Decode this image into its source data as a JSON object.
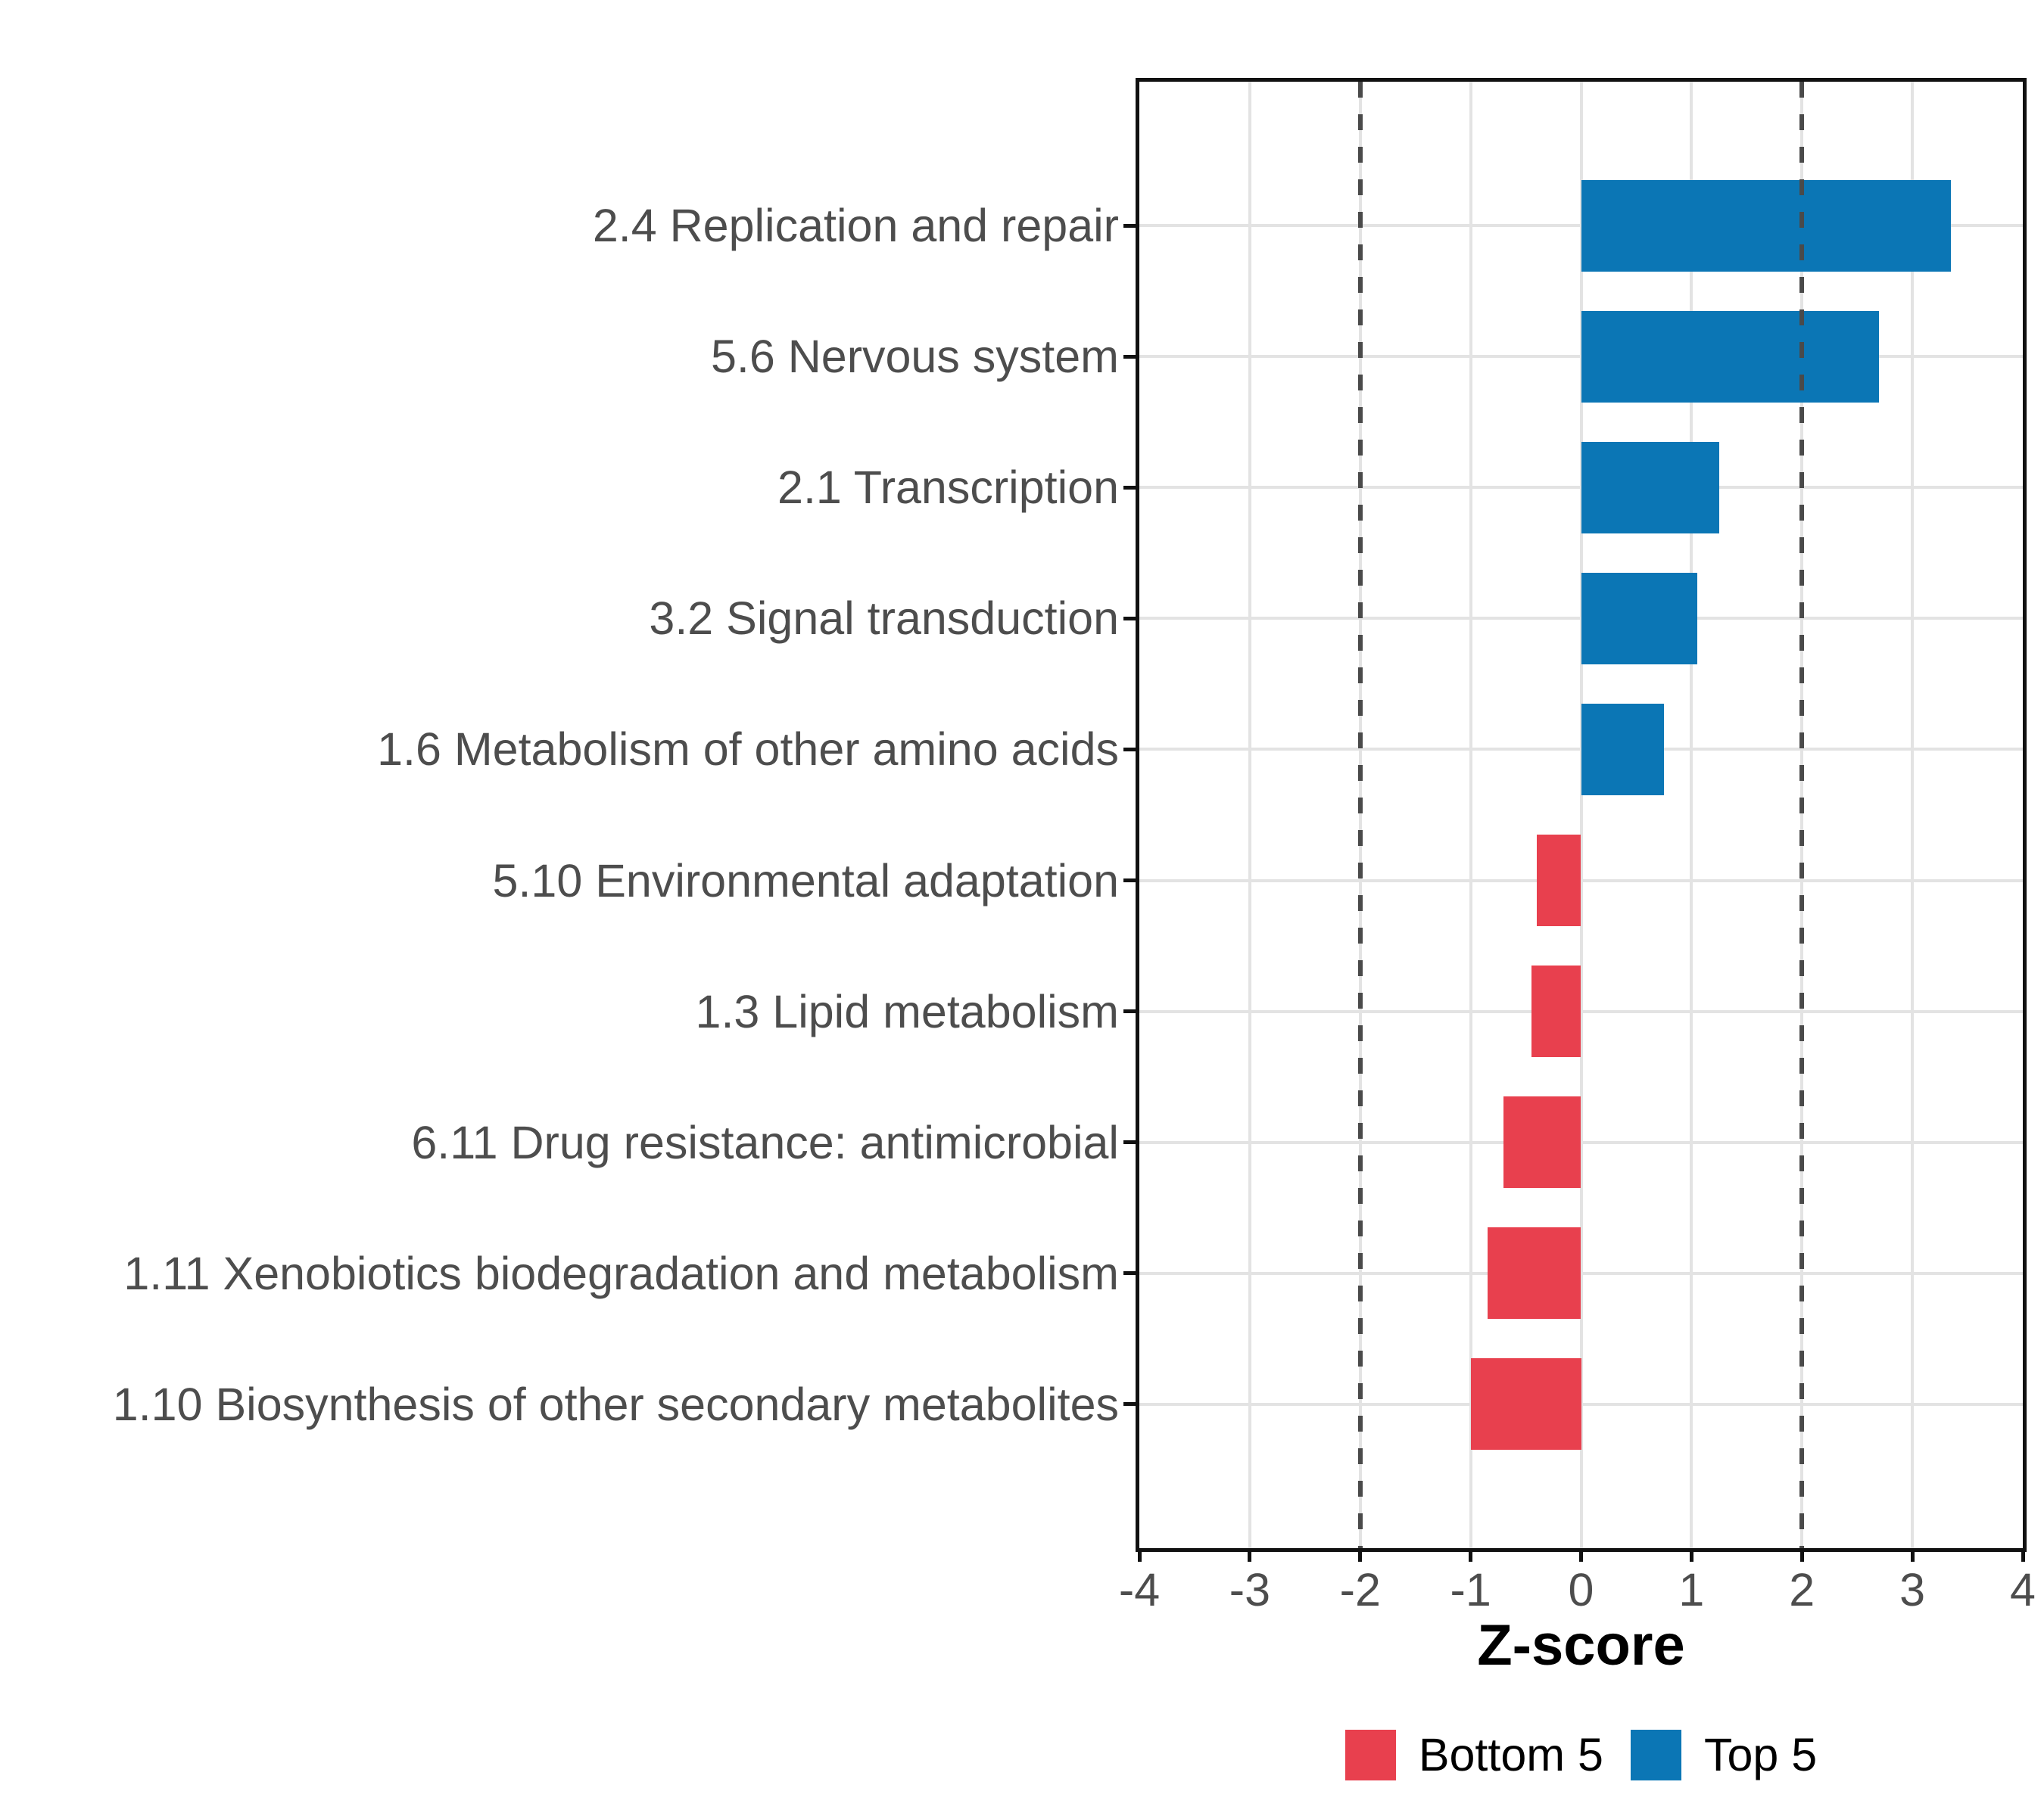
{
  "figure": {
    "background": "#ffffff",
    "border_color": "#111111",
    "grid_color": "#E3E3E3",
    "reference_line_color": "#4A4A4A",
    "axis_text_color": "#4D4D4D"
  },
  "chart_data": {
    "type": "bar",
    "orientation": "horizontal",
    "title": "",
    "xlabel": "Z-score",
    "ylabel": "",
    "xlim": [
      -4,
      4
    ],
    "xticks": [
      -4,
      -3,
      -2,
      -1,
      0,
      1,
      2,
      3,
      4
    ],
    "reference_lines": [
      -2,
      2
    ],
    "grid": true,
    "legend_position": "bottom",
    "categories": [
      "2.4 Replication and repair",
      "5.6 Nervous system",
      "2.1 Transcription",
      "3.2 Signal transduction",
      "1.6 Metabolism of other amino acids",
      "5.10 Environmental adaptation",
      "1.3 Lipid metabolism",
      "6.11 Drug resistance: antimicrobial",
      "1.11 Xenobiotics biodegradation and metabolism",
      "1.10 Biosynthesis of other secondary metabolites"
    ],
    "values": [
      3.35,
      2.7,
      1.25,
      1.05,
      0.75,
      -0.4,
      -0.45,
      -0.7,
      -0.85,
      -1.0
    ],
    "groups": [
      "Top 5",
      "Top 5",
      "Top 5",
      "Top 5",
      "Top 5",
      "Bottom 5",
      "Bottom 5",
      "Bottom 5",
      "Bottom 5",
      "Bottom 5"
    ],
    "colors": {
      "Top 5": "#0B76B5",
      "Bottom 5": "#E8404E"
    },
    "legend": [
      {
        "label": "Bottom 5",
        "color": "#E8404E"
      },
      {
        "label": "Top 5",
        "color": "#0B76B5"
      }
    ]
  }
}
